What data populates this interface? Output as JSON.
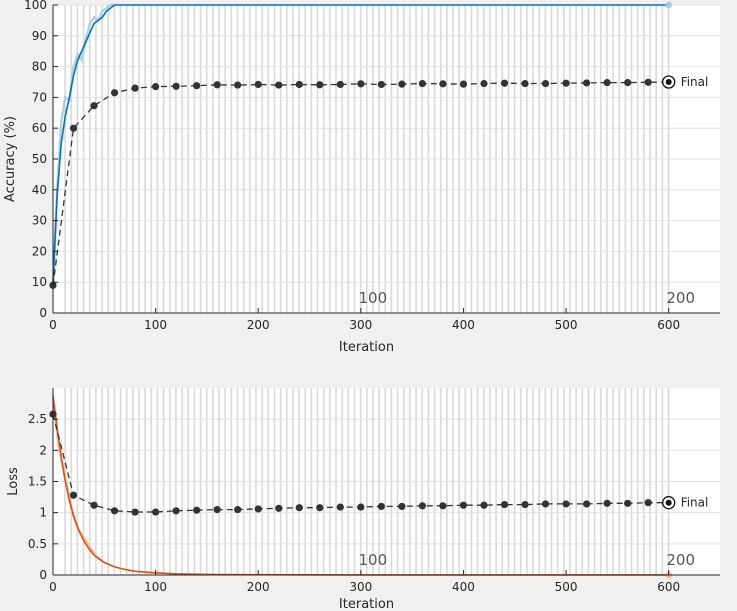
{
  "chart_data": [
    {
      "type": "line",
      "xlabel": "Iteration",
      "ylabel": "Accuracy (%)",
      "xlim": [
        0,
        650
      ],
      "ylim": [
        0,
        100
      ],
      "xticks": [
        0,
        100,
        200,
        300,
        400,
        500,
        600
      ],
      "yticks": [
        0,
        10,
        20,
        30,
        40,
        50,
        60,
        70,
        80,
        90,
        100
      ],
      "grid": true,
      "epoch_labels": [
        {
          "x": 300,
          "text": "100"
        },
        {
          "x": 600,
          "text": "200"
        }
      ],
      "final_label": "Final",
      "colors": {
        "training": "#0072BD",
        "training_raw": "#9ecae1",
        "validation": "#333333",
        "epoch_band": "#d9d9d9"
      },
      "series": [
        {
          "role": "training",
          "x": [
            0,
            4,
            8,
            12,
            16,
            20,
            24,
            28,
            32,
            36,
            40,
            44,
            48,
            52,
            56,
            60,
            70,
            80,
            100,
            150,
            200,
            300,
            400,
            500,
            600
          ],
          "values": [
            10,
            38,
            55,
            64,
            70,
            77,
            82,
            85,
            88,
            91,
            94,
            95,
            96,
            98,
            99,
            100,
            100,
            100,
            100,
            100,
            100,
            100,
            100,
            100,
            100
          ]
        },
        {
          "role": "training_raw",
          "x": [
            0,
            4,
            8,
            12,
            16,
            20,
            24,
            28,
            32,
            36,
            40,
            44,
            48,
            52,
            56,
            60
          ],
          "values": [
            8,
            40,
            62,
            70,
            69,
            80,
            84,
            82,
            89,
            94,
            96,
            95,
            98,
            99,
            100,
            100
          ]
        },
        {
          "role": "validation",
          "x": [
            0,
            20,
            40,
            60,
            80,
            100,
            120,
            140,
            160,
            180,
            200,
            220,
            240,
            260,
            280,
            300,
            320,
            340,
            360,
            380,
            400,
            420,
            440,
            460,
            480,
            500,
            520,
            540,
            560,
            580,
            600
          ],
          "values": [
            9,
            60,
            67.3,
            71.5,
            73,
            73.5,
            73.6,
            73.8,
            74.1,
            74,
            74.2,
            74,
            74.2,
            74.1,
            74.2,
            74.4,
            74.2,
            74.3,
            74.5,
            74.4,
            74.3,
            74.5,
            74.6,
            74.5,
            74.5,
            74.6,
            74.7,
            74.8,
            74.8,
            74.9,
            75
          ]
        }
      ]
    },
    {
      "type": "line",
      "xlabel": "Iteration",
      "ylabel": "Loss",
      "xlim": [
        0,
        650
      ],
      "ylim": [
        0,
        3
      ],
      "xticks": [
        0,
        100,
        200,
        300,
        400,
        500,
        600
      ],
      "yticks": [
        0,
        0.5,
        1,
        1.5,
        2,
        2.5
      ],
      "grid": true,
      "epoch_labels": [
        {
          "x": 300,
          "text": "100"
        },
        {
          "x": 600,
          "text": "200"
        }
      ],
      "final_label": "Final",
      "colors": {
        "training": "#D95319",
        "training_raw": "#f4b183",
        "validation": "#333333",
        "epoch_band": "#d9d9d9"
      },
      "series": [
        {
          "role": "training",
          "x": [
            0,
            4,
            8,
            12,
            16,
            20,
            25,
            30,
            35,
            40,
            50,
            60,
            70,
            80,
            100,
            120,
            150,
            200,
            300,
            400,
            500,
            600
          ],
          "values": [
            2.85,
            2.35,
            1.9,
            1.5,
            1.2,
            0.95,
            0.72,
            0.55,
            0.42,
            0.32,
            0.2,
            0.13,
            0.09,
            0.06,
            0.035,
            0.02,
            0.01,
            0.005,
            0.002,
            0.001,
            0.001,
            0.001
          ]
        },
        {
          "role": "training_raw",
          "x": [
            0,
            6,
            12,
            18,
            24,
            30,
            36,
            42,
            48
          ],
          "values": [
            2.9,
            2.0,
            1.55,
            1.05,
            0.75,
            0.6,
            0.45,
            0.3,
            0.22
          ]
        },
        {
          "role": "validation",
          "x": [
            0,
            20,
            40,
            60,
            80,
            100,
            120,
            140,
            160,
            180,
            200,
            220,
            240,
            260,
            280,
            300,
            320,
            340,
            360,
            380,
            400,
            420,
            440,
            460,
            480,
            500,
            520,
            540,
            560,
            580,
            600
          ],
          "values": [
            2.58,
            1.28,
            1.12,
            1.03,
            1.01,
            1.01,
            1.03,
            1.04,
            1.05,
            1.05,
            1.06,
            1.07,
            1.08,
            1.08,
            1.09,
            1.09,
            1.1,
            1.1,
            1.11,
            1.11,
            1.12,
            1.12,
            1.13,
            1.13,
            1.14,
            1.14,
            1.14,
            1.15,
            1.15,
            1.16,
            1.16
          ]
        }
      ]
    }
  ]
}
